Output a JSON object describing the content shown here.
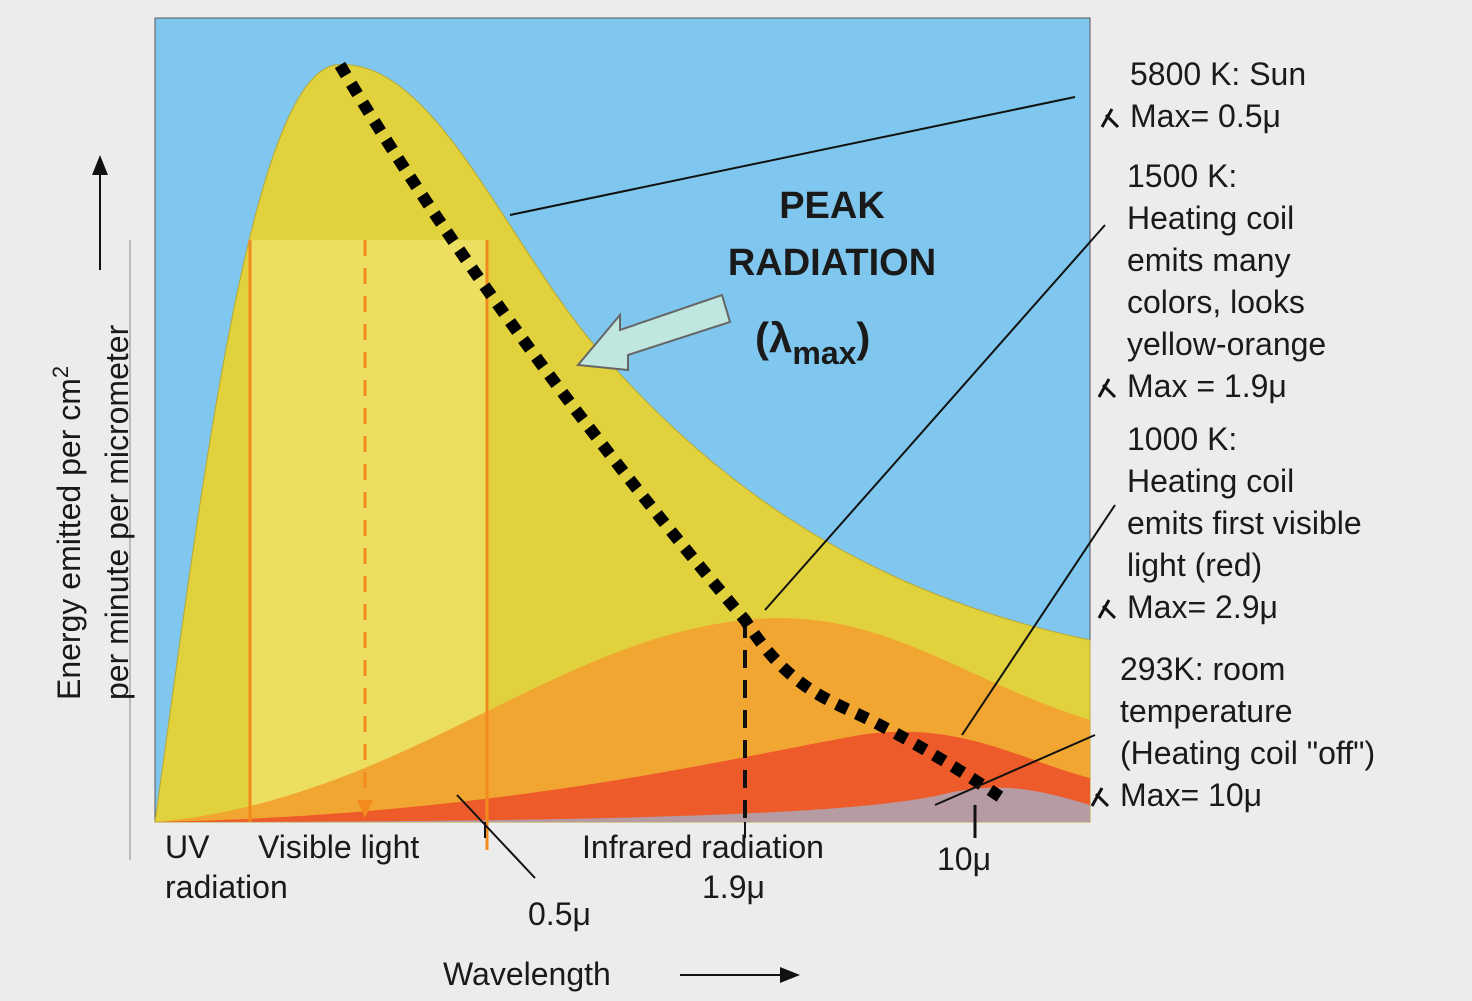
{
  "axes": {
    "y_label": {
      "line1": "Energy emitted per cm",
      "line1_sup": "2",
      "line2": "per minute per micrometer"
    },
    "x_label": "Wavelength"
  },
  "regions": {
    "uv": [
      "UV",
      "radiation"
    ],
    "visible": "Visible light",
    "infrared": "Infrared radiation"
  },
  "ticks": [
    "0.5μ",
    "1.9μ",
    "10μ"
  ],
  "peak_label": {
    "lines": [
      "PEAK",
      "RADIATION"
    ],
    "open": "(λ",
    "subscript": "max",
    "close": ")"
  },
  "curves": [
    {
      "lines": [
        "5800 K: Sun"
      ],
      "lambda_max": "Max= 0.5μ"
    },
    {
      "lines": [
        "1500 K:",
        "Heating coil",
        "emits many",
        "colors, looks",
        "yellow-orange"
      ],
      "lambda_max": "Max = 1.9μ"
    },
    {
      "lines": [
        "1000 K:",
        "Heating coil",
        "emits first visible",
        "light (red)"
      ],
      "lambda_max": "Max= 2.9μ"
    },
    {
      "lines": [
        "293K: room",
        "temperature",
        "(Heating coil \"off\")"
      ],
      "lambda_max": "Max= 10μ"
    }
  ]
}
